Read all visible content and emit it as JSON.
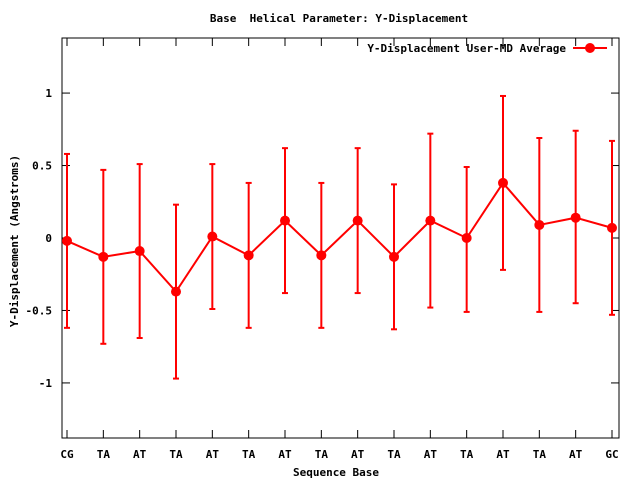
{
  "chart_data": {
    "type": "line",
    "title": "Base  Helical Parameter: Y-Displacement",
    "xlabel": "Sequence Base",
    "ylabel": "Y-Displacement (Angstroms)",
    "categories": [
      "CG",
      "TA",
      "AT",
      "TA",
      "AT",
      "TA",
      "AT",
      "TA",
      "AT",
      "TA",
      "AT",
      "TA",
      "AT",
      "TA",
      "AT",
      "GC"
    ],
    "ylim": [
      -1.38,
      1.38
    ],
    "yticks": [
      {
        "value": 1,
        "label": "1"
      },
      {
        "value": 0.5,
        "label": "0.5"
      },
      {
        "value": 0,
        "label": "0"
      },
      {
        "value": -0.5,
        "label": "-0.5"
      },
      {
        "value": -1,
        "label": "-1"
      }
    ],
    "grid": false,
    "legend_position": "top-right",
    "series": [
      {
        "name": "Y-Displacement User-MD Average",
        "color": "#ff0000",
        "marker": "circle",
        "values": [
          -0.02,
          -0.13,
          -0.09,
          -0.37,
          0.01,
          -0.12,
          0.12,
          -0.12,
          0.12,
          -0.13,
          0.12,
          0.0,
          0.38,
          0.09,
          0.14,
          0.07
        ],
        "err_low": [
          -0.62,
          -0.73,
          -0.69,
          -0.97,
          -0.49,
          -0.62,
          -0.38,
          -0.62,
          -0.38,
          -0.63,
          -0.48,
          -0.51,
          -0.22,
          -0.51,
          -0.45,
          -0.53
        ],
        "err_high": [
          0.58,
          0.47,
          0.51,
          0.23,
          0.51,
          0.38,
          0.62,
          0.38,
          0.62,
          0.37,
          0.72,
          0.49,
          0.98,
          0.69,
          0.74,
          0.67
        ]
      }
    ]
  }
}
